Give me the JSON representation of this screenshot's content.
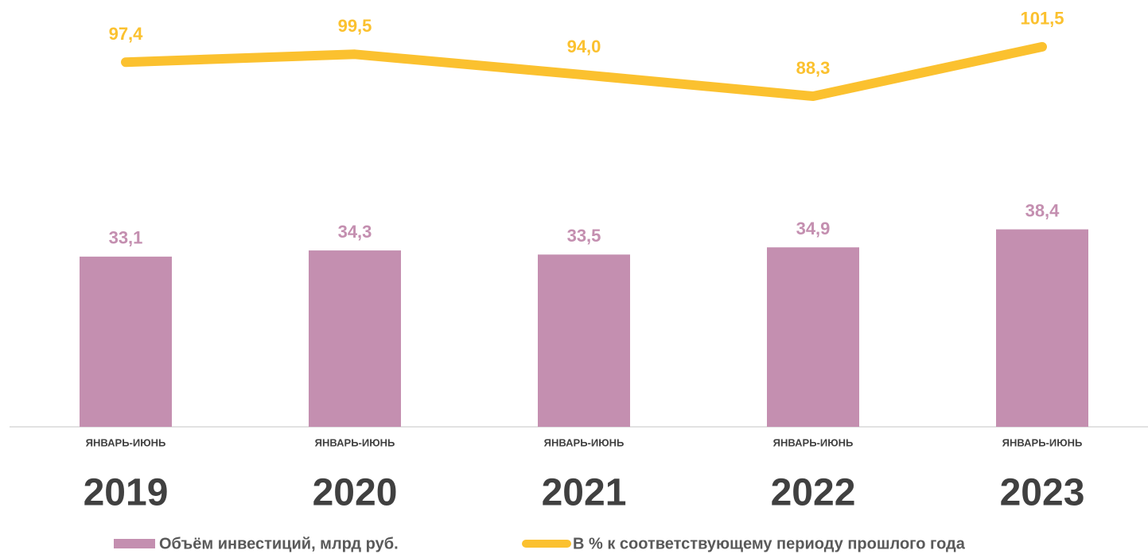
{
  "chart_data": {
    "type": "bar_line",
    "categories": [
      "2019",
      "2020",
      "2021",
      "2022",
      "2023"
    ],
    "period_labels": [
      "ЯНВАРЬ-ИЮНЬ",
      "ЯНВАРЬ-ИЮНЬ",
      "ЯНВАРЬ-ИЮНЬ",
      "ЯНВАРЬ-ИЮНЬ",
      "ЯНВАРЬ-ИЮНЬ"
    ],
    "series": [
      {
        "name": "Объём инвестиций, млрд руб.",
        "type": "bar",
        "color": "#c48fb0",
        "axis": "y",
        "values": [
          33.1,
          34.3,
          33.5,
          34.9,
          38.4
        ],
        "value_labels": [
          "33,1",
          "34,3",
          "33,5",
          "34,9",
          "38,4"
        ]
      },
      {
        "name": "В % к соответствующему периоду прошлого года",
        "type": "line",
        "color": "#fbc12f",
        "axis": "y2",
        "values": [
          97.4,
          99.5,
          94.0,
          88.3,
          101.5
        ],
        "value_labels": [
          "97,4",
          "99,5",
          "94,0",
          "88,3",
          "101,5"
        ]
      }
    ],
    "ylim": [
      0,
      83
    ],
    "y2lim": [
      0,
      114
    ],
    "legend": "bottom"
  }
}
